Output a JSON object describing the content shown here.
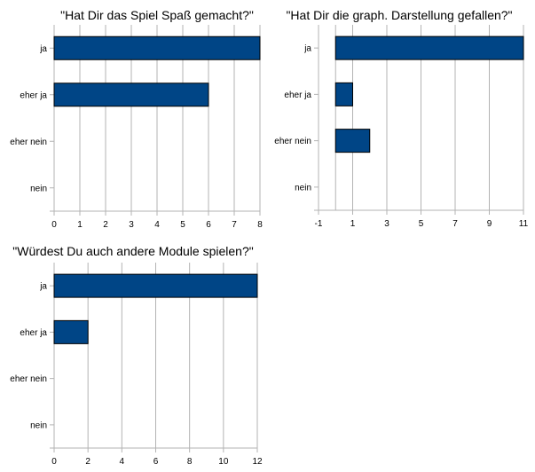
{
  "chart_data": [
    {
      "type": "bar",
      "orientation": "horizontal",
      "title": "\"Hat Dir das Spiel Spaß gemacht?\"",
      "categories": [
        "ja",
        "eher ja",
        "eher nein",
        "nein"
      ],
      "values": [
        8,
        6,
        0,
        0
      ],
      "xlim": [
        0,
        8
      ],
      "xticks": [
        0,
        1,
        2,
        3,
        4,
        5,
        6,
        7,
        8
      ],
      "grid": true,
      "bar_color": "#004586"
    },
    {
      "type": "bar",
      "orientation": "horizontal",
      "title": "\"Hat Dir die graph. Darstellung gefallen?\"",
      "categories": [
        "ja",
        "eher ja",
        "eher nein",
        "nein"
      ],
      "values": [
        11,
        1,
        2,
        0
      ],
      "xlim": [
        -1,
        11
      ],
      "xticks": [
        -1,
        1,
        3,
        5,
        7,
        9,
        11
      ],
      "grid": true,
      "bar_color": "#004586"
    },
    {
      "type": "bar",
      "orientation": "horizontal",
      "title": "\"Würdest Du auch andere Module spielen?\"",
      "categories": [
        "ja",
        "eher ja",
        "eher nein",
        "nein"
      ],
      "values": [
        12,
        2,
        0,
        0
      ],
      "xlim": [
        0,
        12
      ],
      "xticks": [
        0,
        2,
        4,
        6,
        8,
        10,
        12
      ],
      "grid": true,
      "bar_color": "#004586"
    }
  ]
}
